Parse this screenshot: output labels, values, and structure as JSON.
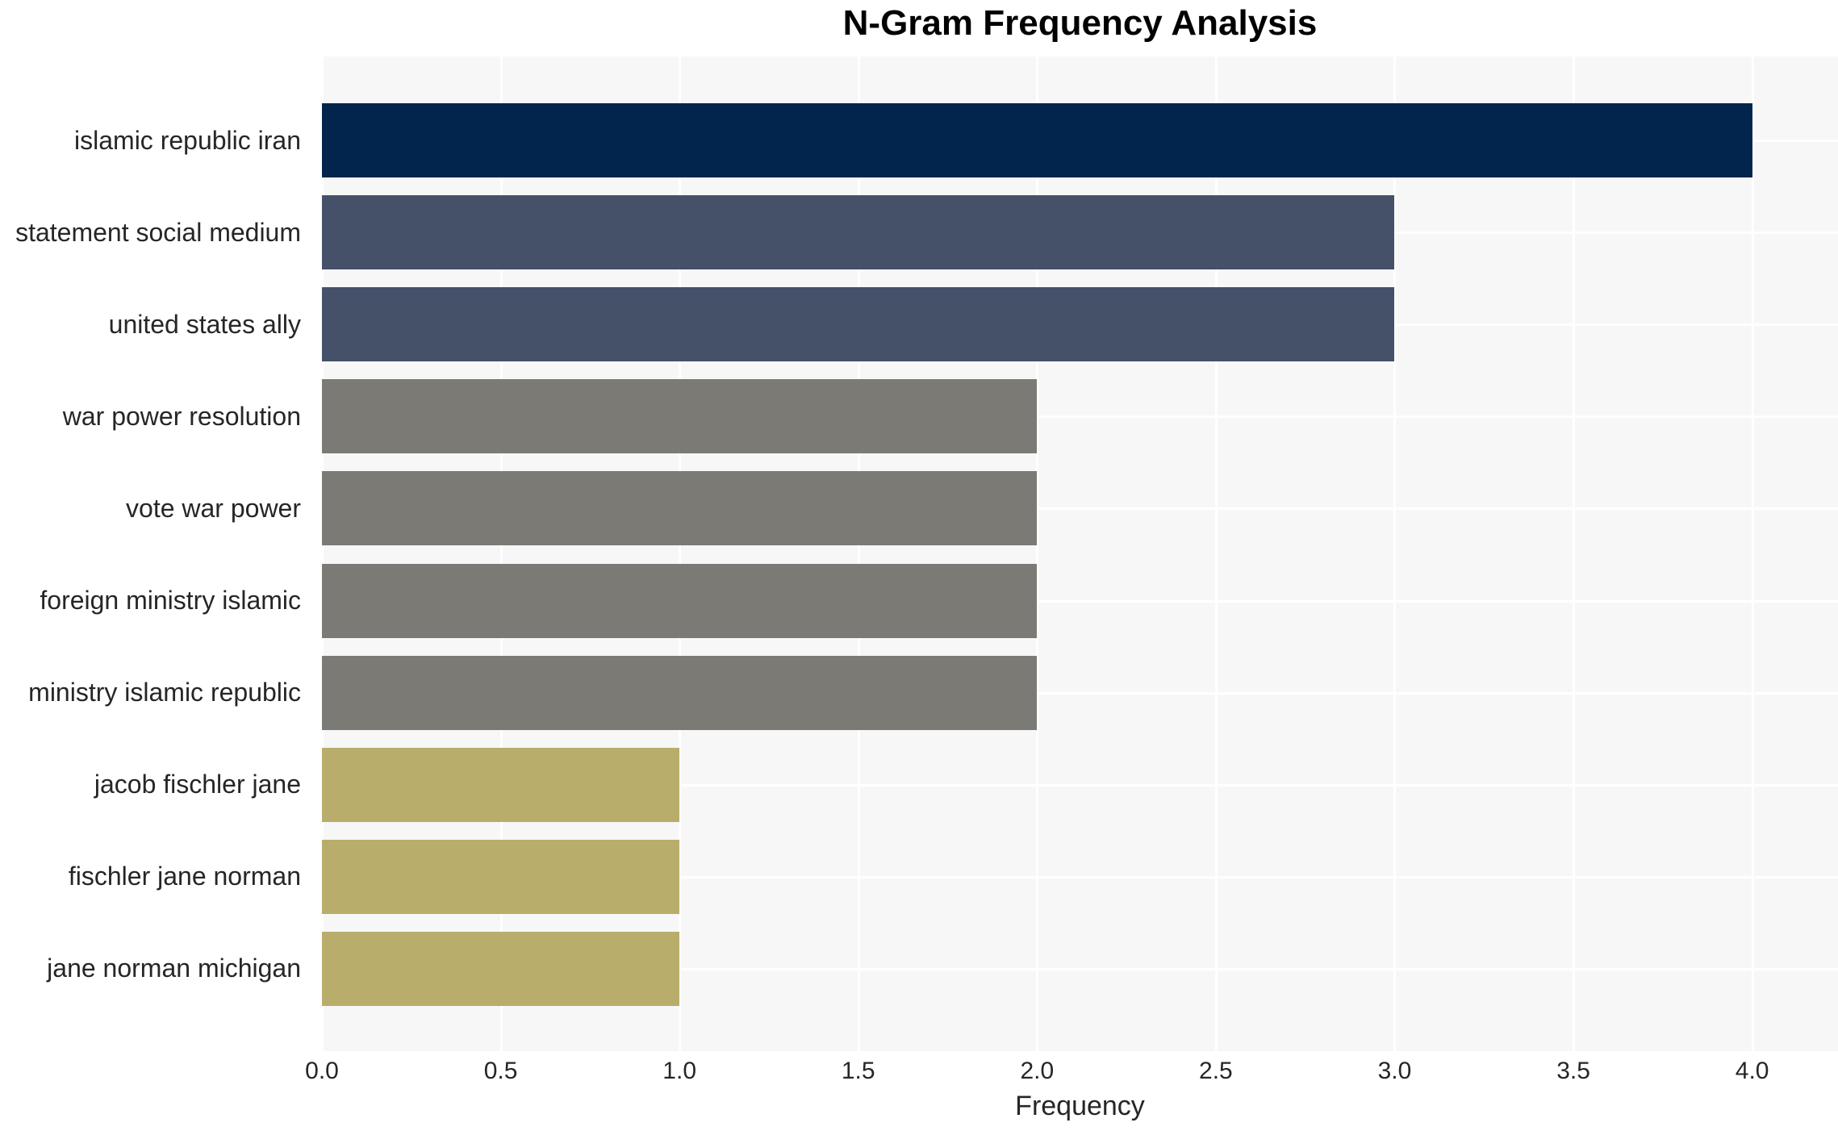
{
  "chart_data": {
    "type": "bar",
    "orientation": "horizontal",
    "title": "N-Gram Frequency Analysis",
    "xlabel": "Frequency",
    "ylabel": "",
    "categories": [
      "islamic republic iran",
      "statement social medium",
      "united states ally",
      "war power resolution",
      "vote war power",
      "foreign ministry islamic",
      "ministry islamic republic",
      "jacob fischler jane",
      "fischler jane norman",
      "jane norman michigan"
    ],
    "values": [
      4,
      3,
      3,
      2,
      2,
      2,
      2,
      1,
      1,
      1
    ],
    "bar_colors": [
      "#02254d",
      "#455069",
      "#455069",
      "#7b7a74",
      "#7b7a74",
      "#7b7a74",
      "#7b7a74",
      "#b9ad6c",
      "#b9ad6c",
      "#b9ad6c"
    ],
    "xlim": [
      0,
      4.24
    ],
    "xticks": [
      0.0,
      0.5,
      1.0,
      1.5,
      2.0,
      2.5,
      3.0,
      3.5,
      4.0
    ],
    "xtick_labels": [
      "0.0",
      "0.5",
      "1.0",
      "1.5",
      "2.0",
      "2.5",
      "3.0",
      "3.5",
      "4.0"
    ],
    "grid": true,
    "legend": "none",
    "plot_background": "#f7f7f7",
    "grid_color": "#ffffff",
    "text_color": "#262626",
    "title_color": "#000000",
    "bar_height_fraction": 0.8
  }
}
